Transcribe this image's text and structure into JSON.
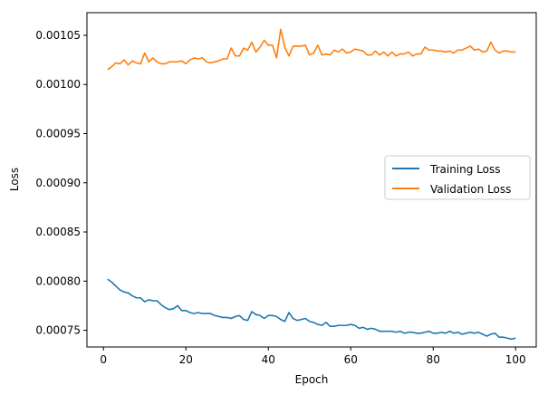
{
  "chart_data": {
    "type": "line",
    "xlabel": "Epoch",
    "ylabel": "Loss",
    "xlim": [
      -4,
      105
    ],
    "ylim": [
      0.000733,
      0.001073
    ],
    "xticks": [
      0,
      20,
      40,
      60,
      80,
      100
    ],
    "yticks": [
      0.00075,
      0.0008,
      0.00085,
      0.0009,
      0.00095,
      0.001,
      0.00105
    ],
    "ytick_labels": [
      "0.00075",
      "0.00080",
      "0.00085",
      "0.00090",
      "0.00095",
      "0.00100",
      "0.00105"
    ],
    "grid": false,
    "legend_position": "center-right",
    "x": [
      1,
      2,
      3,
      4,
      5,
      6,
      7,
      8,
      9,
      10,
      11,
      12,
      13,
      14,
      15,
      16,
      17,
      18,
      19,
      20,
      21,
      22,
      23,
      24,
      25,
      26,
      27,
      28,
      29,
      30,
      31,
      32,
      33,
      34,
      35,
      36,
      37,
      38,
      39,
      40,
      41,
      42,
      43,
      44,
      45,
      46,
      47,
      48,
      49,
      50,
      51,
      52,
      53,
      54,
      55,
      56,
      57,
      58,
      59,
      60,
      61,
      62,
      63,
      64,
      65,
      66,
      67,
      68,
      69,
      70,
      71,
      72,
      73,
      74,
      75,
      76,
      77,
      78,
      79,
      80,
      81,
      82,
      83,
      84,
      85,
      86,
      87,
      88,
      89,
      90,
      91,
      92,
      93,
      94,
      95,
      96,
      97,
      98,
      99,
      100
    ],
    "series": [
      {
        "name": "Training Loss",
        "color": "#1f77b4",
        "values": [
          0.000802,
          0.000799,
          0.000795,
          0.000791,
          0.000789,
          0.000788,
          0.000785,
          0.000783,
          0.000783,
          0.000779,
          0.000781,
          0.00078,
          0.00078,
          0.000776,
          0.000773,
          0.000771,
          0.000772,
          0.000775,
          0.00077,
          0.00077,
          0.000768,
          0.000767,
          0.000768,
          0.000767,
          0.000767,
          0.000767,
          0.000765,
          0.000764,
          0.000763,
          0.000763,
          0.000762,
          0.000764,
          0.000765,
          0.000761,
          0.00076,
          0.000769,
          0.000766,
          0.000765,
          0.000762,
          0.000765,
          0.000765,
          0.000764,
          0.000761,
          0.000759,
          0.000768,
          0.000762,
          0.00076,
          0.000761,
          0.000762,
          0.000759,
          0.000758,
          0.000756,
          0.000755,
          0.000758,
          0.000754,
          0.000754,
          0.000755,
          0.000755,
          0.000755,
          0.000756,
          0.000755,
          0.000752,
          0.000753,
          0.000751,
          0.000752,
          0.000751,
          0.000749,
          0.000749,
          0.000749,
          0.000749,
          0.000748,
          0.000749,
          0.000747,
          0.000748,
          0.000748,
          0.000747,
          0.000747,
          0.000748,
          0.000749,
          0.000747,
          0.000747,
          0.000748,
          0.000747,
          0.000749,
          0.000747,
          0.000748,
          0.000746,
          0.000747,
          0.000748,
          0.000747,
          0.000748,
          0.000746,
          0.000744,
          0.000746,
          0.000747,
          0.000743,
          0.000743,
          0.000742,
          0.000741,
          0.000742
        ]
      },
      {
        "name": "Validation Loss",
        "color": "#ff7f0e",
        "values": [
          0.001015,
          0.001018,
          0.001022,
          0.001021,
          0.001025,
          0.00102,
          0.001024,
          0.001022,
          0.001021,
          0.001032,
          0.001023,
          0.001027,
          0.001023,
          0.001021,
          0.001021,
          0.001023,
          0.001023,
          0.001023,
          0.001024,
          0.001021,
          0.001025,
          0.001027,
          0.001026,
          0.001027,
          0.001023,
          0.001022,
          0.001023,
          0.001024,
          0.001026,
          0.001026,
          0.001037,
          0.001029,
          0.001029,
          0.001037,
          0.001035,
          0.001043,
          0.001033,
          0.001038,
          0.001045,
          0.00104,
          0.00104,
          0.001027,
          0.001056,
          0.001038,
          0.001029,
          0.001039,
          0.001039,
          0.001039,
          0.00104,
          0.00103,
          0.001032,
          0.00104,
          0.00103,
          0.001031,
          0.00103,
          0.001035,
          0.001033,
          0.001036,
          0.001032,
          0.001033,
          0.001036,
          0.001035,
          0.001034,
          0.00103,
          0.00103,
          0.001034,
          0.00103,
          0.001033,
          0.001029,
          0.001033,
          0.001029,
          0.001031,
          0.001031,
          0.001033,
          0.001029,
          0.001031,
          0.001031,
          0.001038,
          0.001035,
          0.001035,
          0.001034,
          0.001034,
          0.001033,
          0.001034,
          0.001032,
          0.001035,
          0.001035,
          0.001037,
          0.001039,
          0.001035,
          0.001036,
          0.001033,
          0.001034,
          0.001043,
          0.001035,
          0.001032,
          0.001034,
          0.001034,
          0.001033,
          0.001033
        ]
      }
    ]
  }
}
